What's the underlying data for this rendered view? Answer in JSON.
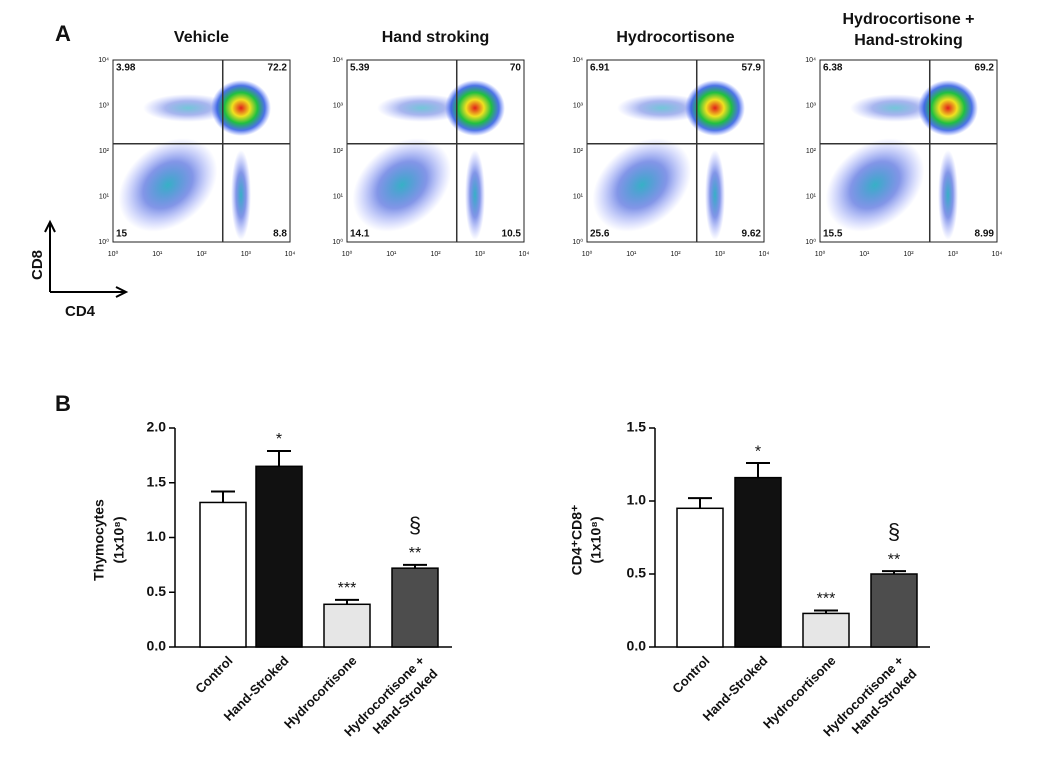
{
  "panel_labels": [
    "A",
    "B"
  ],
  "flow_axes": {
    "x_label": "CD4",
    "y_label": "CD8",
    "log_scale": true,
    "lim": [
      1,
      10000
    ],
    "ticks": [
      {
        "value": 1,
        "label": "10⁰"
      },
      {
        "value": 10,
        "label": "10¹"
      },
      {
        "value": 100,
        "label": "10²"
      },
      {
        "value": 1000,
        "label": "10³"
      },
      {
        "value": 10000,
        "label": "10⁴"
      }
    ]
  },
  "flow_plots": [
    {
      "title": [
        "Vehicle"
      ],
      "quadrants": {
        "upper_left": 3.98,
        "upper_right": 72.2,
        "lower_left": 15,
        "lower_right": 8.8
      }
    },
    {
      "title": [
        "Hand stroking"
      ],
      "quadrants": {
        "upper_left": 5.39,
        "upper_right": 70,
        "lower_left": 14.1,
        "lower_right": 10.5
      }
    },
    {
      "title": [
        "Hydrocortisone"
      ],
      "quadrants": {
        "upper_left": 6.91,
        "upper_right": 57.9,
        "lower_left": 25.6,
        "lower_right": 9.62
      }
    },
    {
      "title": [
        "Hydrocortisone +",
        "Hand-stroking"
      ],
      "quadrants": {
        "upper_left": 6.38,
        "upper_right": 69.2,
        "lower_left": 15.5,
        "lower_right": 8.99
      }
    }
  ],
  "chart_data": [
    {
      "type": "bar",
      "y_label": [
        "Thymocytes",
        "(1x10⁸)"
      ],
      "categories": [
        [
          "Control"
        ],
        [
          "Hand-Stroked"
        ],
        [
          "Hydrocortisone"
        ],
        [
          "Hydrocortisone +",
          "Hand-Stroked"
        ]
      ],
      "values": [
        1.32,
        1.65,
        0.39,
        0.72
      ],
      "errors": [
        0.1,
        0.14,
        0.04,
        0.03
      ],
      "colors": [
        "#ffffff",
        "#111111",
        "#e6e6e6",
        "#4d4d4d"
      ],
      "annotations": [
        null,
        "*",
        "***",
        "**"
      ],
      "secondary_annotations": [
        null,
        null,
        null,
        "§"
      ],
      "ylim": [
        0,
        2
      ],
      "yticks": [
        {
          "value": 0,
          "label": "0.0"
        },
        {
          "value": 0.5,
          "label": "0.5"
        },
        {
          "value": 1,
          "label": "1.0"
        },
        {
          "value": 1.5,
          "label": "1.5"
        },
        {
          "value": 2,
          "label": "2.0"
        }
      ]
    },
    {
      "type": "bar",
      "y_label": [
        "CD4⁺CD8⁺",
        "(1x10⁸)"
      ],
      "categories": [
        [
          "Control"
        ],
        [
          "Hand-Stroked"
        ],
        [
          "Hydrocortisone"
        ],
        [
          "Hydrocortisone +",
          "Hand-Stroked"
        ]
      ],
      "values": [
        0.95,
        1.16,
        0.23,
        0.5
      ],
      "errors": [
        0.07,
        0.1,
        0.02,
        0.02
      ],
      "colors": [
        "#ffffff",
        "#111111",
        "#e6e6e6",
        "#4d4d4d"
      ],
      "annotations": [
        null,
        "*",
        "***",
        "**"
      ],
      "secondary_annotations": [
        null,
        null,
        null,
        "§"
      ],
      "ylim": [
        0,
        1.5
      ],
      "yticks": [
        {
          "value": 0,
          "label": "0.0"
        },
        {
          "value": 0.5,
          "label": "0.5"
        },
        {
          "value": 1,
          "label": "1.0"
        },
        {
          "value": 1.5,
          "label": "1.5"
        }
      ]
    }
  ]
}
